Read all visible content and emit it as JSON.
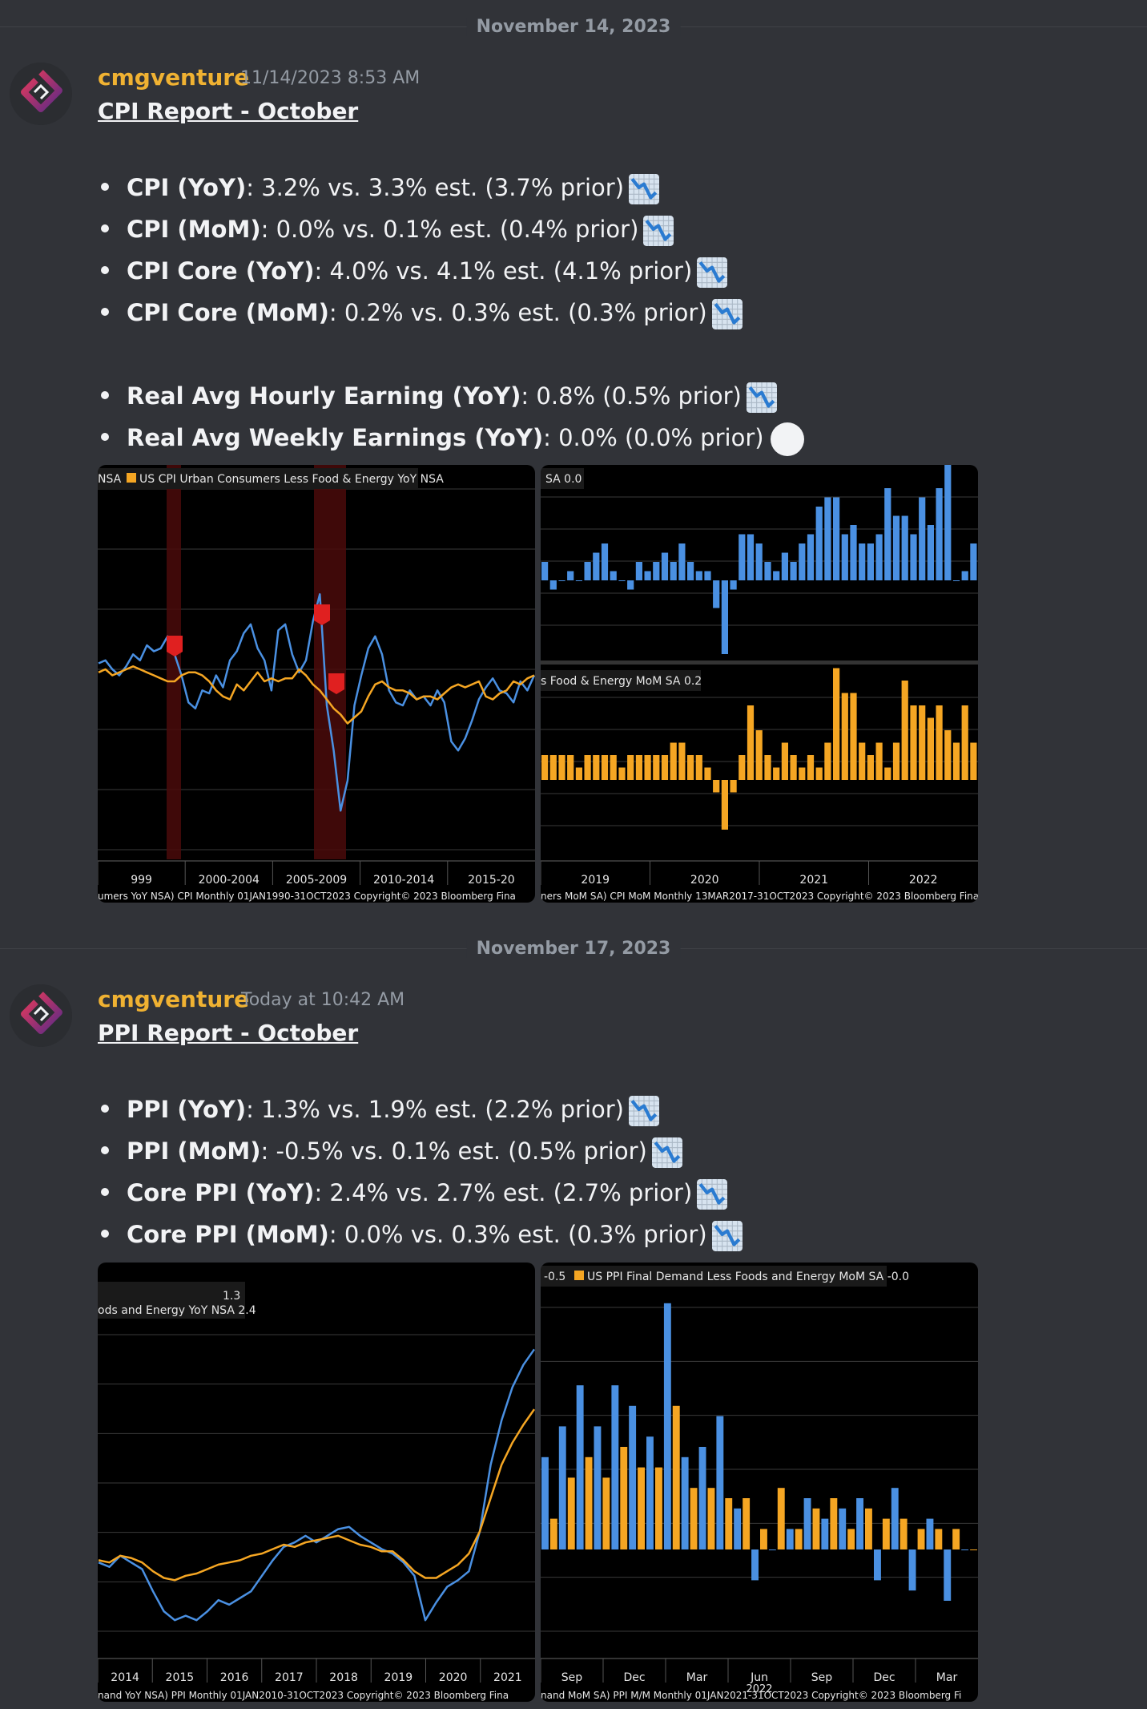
{
  "messages": [
    {
      "date_divider": "November 14, 2023",
      "author": "cmgventure",
      "timestamp": "11/14/2023 8:53 AM",
      "title": "CPI Report - October",
      "bullets": [
        {
          "label": "CPI (YoY)",
          "text": ": 3.2% vs. 3.3% est. (3.7% prior)",
          "icon": "chart-decreasing-icon"
        },
        {
          "label": "CPI (MoM)",
          "text": ": 0.0% vs. 0.1% est. (0.4% prior)",
          "icon": "chart-decreasing-icon"
        },
        {
          "label": "CPI Core (YoY)",
          "text": ": 4.0% vs. 4.1% est. (4.1% prior)",
          "icon": "chart-decreasing-icon"
        },
        {
          "label": "CPI Core (MoM)",
          "text": ": 0.2% vs. 0.3% est. (0.3% prior)",
          "icon": "chart-decreasing-icon"
        }
      ],
      "bullets2": [
        {
          "label": "Real Avg Hourly Earning (YoY)",
          "text": ": 0.8% (0.5% prior)",
          "icon": "chart-decreasing-icon"
        },
        {
          "label": "Real Avg Weekly Earnings (YoY)",
          "text": ": 0.0% (0.0% prior)",
          "icon": "white-circle-icon"
        }
      ]
    },
    {
      "date_divider": "November 17, 2023",
      "author": "cmgventure",
      "timestamp": "Today at 10:42 AM",
      "title": "PPI Report - October",
      "bullets": [
        {
          "label": "PPI (YoY)",
          "text": ": 1.3% vs. 1.9% est. (2.2% prior)",
          "icon": "chart-decreasing-icon"
        },
        {
          "label": "PPI (MoM)",
          "text": ": -0.5% vs. 0.1% est. (0.5% prior)",
          "icon": "chart-decreasing-icon"
        },
        {
          "label": "Core PPI (YoY)",
          "text": ": 2.4% vs. 2.7% est. (2.7% prior)",
          "icon": "chart-decreasing-icon"
        },
        {
          "label": "Core PPI (MoM)",
          "text": ": 0.0% vs. 0.3% est. (0.3% prior)",
          "icon": "chart-decreasing-icon"
        }
      ]
    }
  ],
  "colors": {
    "blue": "#4a90e2",
    "orange": "#f5a623",
    "recession": "#5a1010",
    "author": "#f0b232"
  },
  "chart_data": [
    {
      "type": "line",
      "legend": "NSA",
      "legend2": "US CPI Urban Consumers Less Food & Energy YoY NSA",
      "ticks": [
        "999",
        "2000-2004",
        "2005-2009",
        "2010-2014",
        "2015-20"
      ],
      "footer": "umers YoY NSA) CPI  Monthly 01JAN1990-31OCT2023     Copyright© 2023 Bloomberg Fina",
      "series": [
        {
          "name": "CPI YoY",
          "values": [
            2.9,
            3.0,
            2.7,
            2.5,
            2.8,
            3.2,
            3.0,
            3.5,
            3.3,
            3.4,
            3.8,
            3.2,
            2.5,
            1.6,
            1.4,
            2.0,
            1.9,
            2.5,
            2.1,
            3.0,
            3.3,
            3.9,
            4.2,
            3.4,
            3.0,
            2.0,
            4.0,
            4.2,
            3.2,
            2.6,
            3.0,
            4.3,
            5.2,
            1.5,
            0.0,
            -2.0,
            -1.0,
            1.5,
            2.5,
            3.4,
            3.8,
            3.2,
            2.0,
            1.6,
            1.5,
            2.0,
            1.7,
            1.8,
            1.5,
            2.0,
            1.6,
            0.3,
            0.0,
            0.4,
            1.0,
            1.7,
            2.1,
            2.4,
            2.0,
            1.9,
            1.6,
            2.3,
            2.0,
            2.5
          ]
        },
        {
          "name": "Core CPI YoY",
          "values": [
            2.6,
            2.7,
            2.5,
            2.6,
            2.7,
            2.8,
            2.7,
            2.6,
            2.5,
            2.4,
            2.3,
            2.3,
            2.5,
            2.6,
            2.6,
            2.5,
            2.3,
            2.0,
            1.8,
            1.7,
            2.2,
            2.0,
            2.3,
            2.6,
            2.3,
            2.4,
            2.3,
            2.4,
            2.4,
            2.7,
            2.5,
            2.2,
            2.0,
            1.7,
            1.4,
            1.2,
            0.9,
            1.1,
            1.3,
            1.8,
            2.2,
            2.3,
            2.1,
            2.0,
            2.0,
            1.9,
            1.7,
            1.8,
            1.8,
            1.7,
            1.9,
            2.1,
            2.2,
            2.1,
            2.2,
            2.3,
            1.8,
            1.7,
            1.9,
            2.0,
            2.3,
            2.2,
            2.4,
            2.5
          ]
        }
      ]
    },
    {
      "type": "bar",
      "legend": "SA 0.0",
      "legend2": "s Food & Energy MoM SA 0.2",
      "ticks": [
        "2019",
        "2020",
        "2021",
        "2022"
      ],
      "footer": "ners MoM SA) CPI MoM  Monthly 13MAR2017-31OCT2023          Copyright© 2023 Bloomberg Financ",
      "series": [
        {
          "name": "CPI MoM",
          "values": [
            0.2,
            -0.1,
            0.0,
            0.1,
            0.0,
            0.2,
            0.3,
            0.4,
            0.1,
            0.0,
            -0.1,
            0.2,
            0.1,
            0.2,
            0.3,
            0.2,
            0.4,
            0.2,
            0.1,
            0.1,
            -0.3,
            -0.8,
            -0.1,
            0.5,
            0.5,
            0.4,
            0.2,
            0.1,
            0.3,
            0.2,
            0.4,
            0.5,
            0.8,
            0.9,
            0.9,
            0.5,
            0.6,
            0.4,
            0.4,
            0.5,
            1.0,
            0.7,
            0.7,
            0.5,
            0.9,
            0.6,
            1.0,
            1.3,
            0.0,
            0.1,
            0.4
          ]
        },
        {
          "name": "Core CPI MoM",
          "values": [
            0.2,
            0.2,
            0.2,
            0.2,
            0.1,
            0.2,
            0.2,
            0.2,
            0.2,
            0.1,
            0.2,
            0.2,
            0.2,
            0.2,
            0.2,
            0.3,
            0.3,
            0.2,
            0.2,
            0.1,
            -0.1,
            -0.4,
            -0.1,
            0.2,
            0.6,
            0.4,
            0.2,
            0.1,
            0.3,
            0.2,
            0.1,
            0.2,
            0.1,
            0.3,
            0.9,
            0.7,
            0.7,
            0.3,
            0.2,
            0.3,
            0.1,
            0.3,
            0.8,
            0.6,
            0.6,
            0.5,
            0.6,
            0.4,
            0.3,
            0.6,
            0.3
          ]
        }
      ]
    },
    {
      "type": "line",
      "legend": "1.3",
      "legend2": "ods and Energy YoY NSA 2.4",
      "ticks": [
        "2014",
        "2015",
        "2016",
        "2017",
        "2018",
        "2019",
        "2020",
        "2021"
      ],
      "footer": "nand YoY NSA) PPI  Monthly 01JAN2010-31OCT2023       Copyright© 2023 Bloomberg Fina",
      "series": [
        {
          "name": "PPI YoY",
          "values": [
            1.6,
            1.4,
            1.9,
            1.6,
            1.3,
            0.3,
            -0.6,
            -1.0,
            -0.8,
            -1.0,
            -0.6,
            -0.1,
            -0.3,
            0.0,
            0.3,
            1.0,
            1.7,
            2.3,
            2.5,
            2.8,
            2.5,
            2.8,
            3.1,
            3.2,
            2.8,
            2.5,
            2.2,
            2.0,
            1.6,
            1.0,
            -1.0,
            -0.2,
            0.5,
            0.8,
            1.2,
            3.0,
            6.0,
            8.0,
            9.5,
            10.5,
            11.2
          ]
        },
        {
          "name": "Core PPI YoY",
          "values": [
            1.7,
            1.6,
            1.9,
            1.8,
            1.6,
            1.2,
            0.9,
            0.8,
            1.0,
            1.1,
            1.3,
            1.5,
            1.6,
            1.7,
            1.9,
            2.0,
            2.2,
            2.4,
            2.3,
            2.5,
            2.6,
            2.7,
            2.8,
            2.6,
            2.4,
            2.3,
            2.1,
            2.1,
            1.7,
            1.2,
            0.9,
            0.9,
            1.2,
            1.5,
            2.0,
            3.0,
            4.5,
            6.0,
            7.0,
            7.8,
            8.5
          ]
        }
      ]
    },
    {
      "type": "bar",
      "legend": "-0.5",
      "legend2": "US PPI Final Demand Less Foods and Energy MoM SA -0.0",
      "ticks": [
        "Sep",
        "Dec",
        "Mar",
        "Jun",
        "Sep",
        "Dec",
        "Mar"
      ],
      "tick_sub": "2022",
      "footer": "nand MoM SA) PPI M/M  Monthly 01JAN2021-31OCT2023  Copyright© 2023 Bloomberg Fi",
      "series": [
        {
          "name": "PPI MoM",
          "values": [
            0.9,
            1.2,
            1.6,
            1.2,
            1.6,
            1.4,
            1.1,
            2.4,
            0.9,
            1.0,
            1.3,
            0.4,
            -0.3,
            0.0,
            0.2,
            0.5,
            0.3,
            0.4,
            0.5,
            -0.3,
            0.6,
            -0.4,
            0.3,
            -0.5,
            -0.0
          ]
        },
        {
          "name": "Core PPI MoM",
          "values": [
            0.3,
            0.7,
            0.9,
            0.7,
            1.0,
            0.8,
            0.8,
            1.4,
            0.6,
            0.6,
            0.5,
            0.5,
            0.2,
            0.6,
            0.2,
            0.4,
            0.5,
            0.2,
            0.4,
            0.3,
            0.3,
            0.2,
            0.2,
            0.2,
            -0.0
          ]
        }
      ]
    }
  ]
}
